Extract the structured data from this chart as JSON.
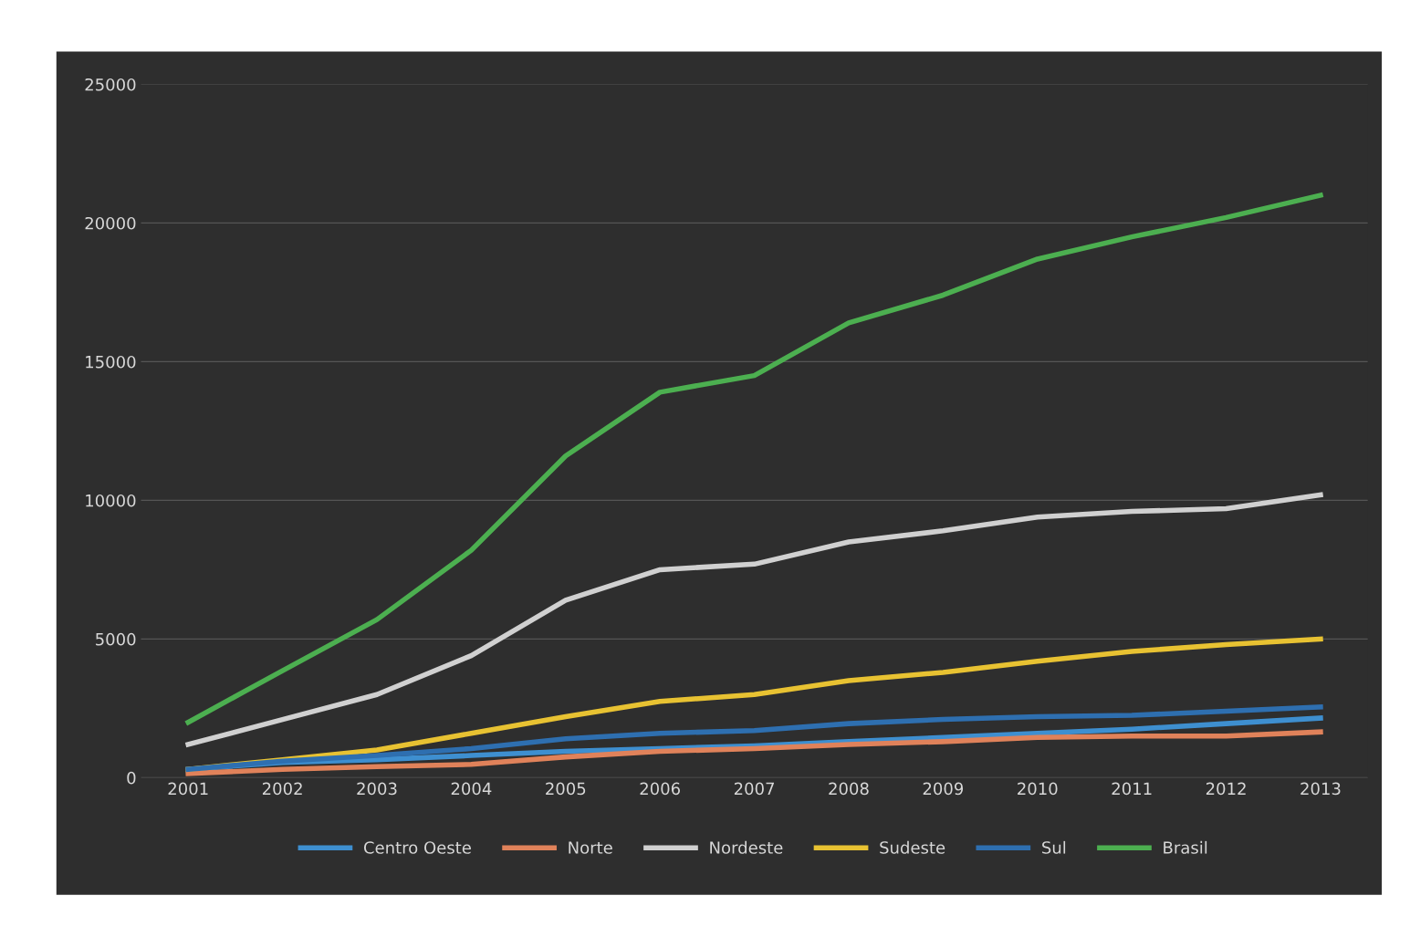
{
  "chart_data": {
    "type": "line",
    "categories": [
      "2001",
      "2002",
      "2003",
      "2004",
      "2005",
      "2006",
      "2007",
      "2008",
      "2009",
      "2010",
      "2011",
      "2012",
      "2013"
    ],
    "series": [
      {
        "name": "Centro Oeste",
        "color": "#3e8fd0",
        "values": [
          300,
          550,
          650,
          800,
          950,
          1050,
          1150,
          1300,
          1450,
          1600,
          1750,
          1950,
          2150
        ]
      },
      {
        "name": "Norte",
        "color": "#e0825a",
        "values": [
          150,
          300,
          400,
          480,
          750,
          950,
          1050,
          1200,
          1300,
          1450,
          1500,
          1500,
          1650
        ]
      },
      {
        "name": "Nordeste",
        "color": "#d0d0d0",
        "values": [
          1200,
          2100,
          3000,
          4400,
          6400,
          7500,
          7700,
          8500,
          8900,
          9400,
          9600,
          9700,
          10200
        ]
      },
      {
        "name": "Sudeste",
        "color": "#e8c232",
        "values": [
          300,
          650,
          1000,
          1600,
          2200,
          2750,
          3000,
          3500,
          3800,
          4200,
          4550,
          4800,
          5000
        ]
      },
      {
        "name": "Sul",
        "color": "#2e6fb0",
        "values": [
          300,
          600,
          800,
          1050,
          1400,
          1600,
          1700,
          1950,
          2100,
          2200,
          2250,
          2400,
          2550
        ]
      },
      {
        "name": "Brasil",
        "color": "#4caf50",
        "values": [
          2000,
          3860,
          5700,
          8200,
          11600,
          13900,
          14500,
          16400,
          17400,
          18700,
          19500,
          20200,
          21000
        ]
      }
    ],
    "ylim": [
      0,
      25000
    ],
    "yticks": [
      0,
      5000,
      10000,
      15000,
      20000,
      25000
    ],
    "grid": "y",
    "legend": "bottom",
    "line_style": "solid",
    "marker": "none"
  }
}
